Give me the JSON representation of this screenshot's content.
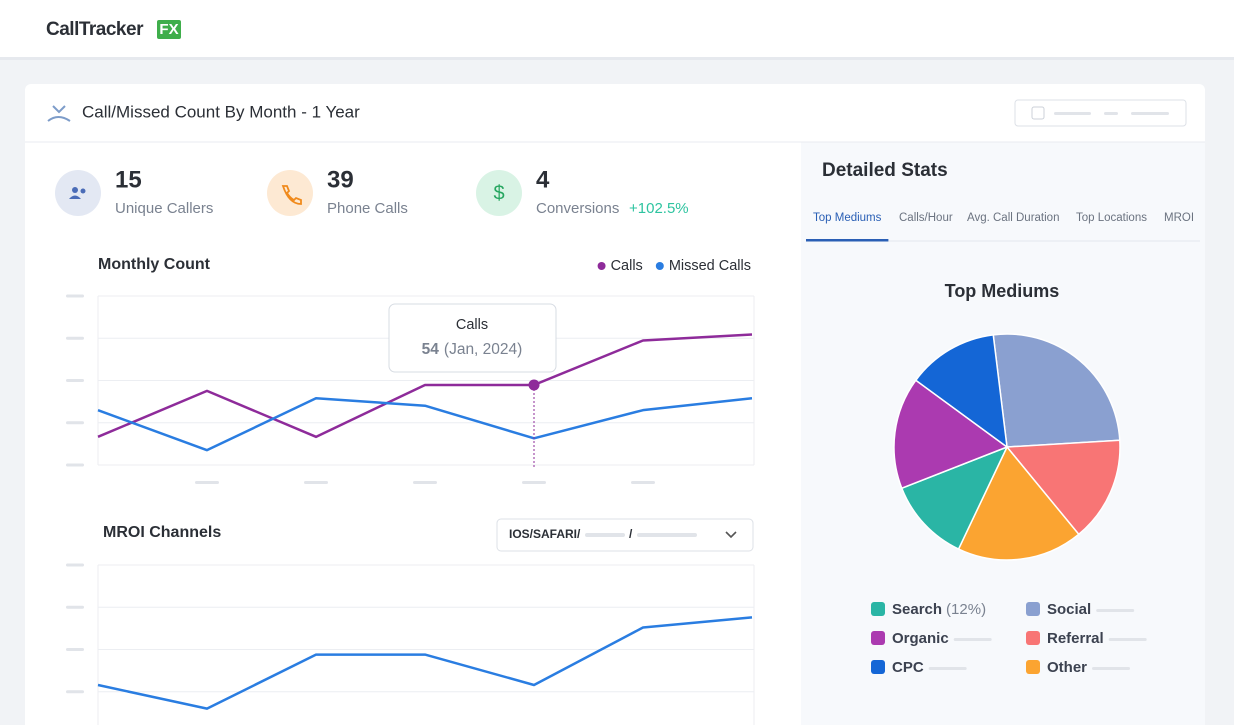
{
  "header": {
    "logo": "CallTracker",
    "logo_badge": "FX"
  },
  "card": {
    "title": "Call/Missed Count By Month - 1 Year",
    "stats": [
      {
        "value": 15,
        "label": "Unique Callers"
      },
      {
        "value": 39,
        "label": "Phone Calls"
      },
      {
        "value": 4,
        "label": "Conversions",
        "change": "+102.5%"
      }
    ]
  },
  "detailed_stats": {
    "title": "Detailed Stats",
    "tabs": [
      "Top Mediums",
      "Calls/Hour",
      "Avg. Call Duration",
      "Top Locations",
      "MROI"
    ],
    "active_tab": 0
  },
  "filter": {
    "parts": [
      "IOS/SAFARI/",
      "/"
    ]
  },
  "chart_data": [
    {
      "type": "line",
      "title": "Monthly Count",
      "categories": [
        null,
        null,
        null,
        null,
        "Jan, 2024",
        null,
        null
      ],
      "series": [
        {
          "name": "Calls",
          "color": "#8e2b9a",
          "values": [
            19,
            50,
            19,
            54,
            54,
            84,
            88
          ]
        },
        {
          "name": "Missed Calls",
          "color": "#2a7de1",
          "values": [
            37,
            10,
            45,
            40,
            18,
            37,
            45
          ]
        }
      ],
      "ylim": [
        0,
        114
      ],
      "tooltip": {
        "title": "Calls",
        "label": "(Jan, 2024)"
      }
    },
    {
      "type": "line",
      "title": "MROI Channels",
      "categories": [
        null,
        null,
        null,
        null,
        null,
        null,
        null
      ],
      "series": [
        {
          "color": "#2a7de1",
          "values": [
            29,
            15,
            47,
            47,
            29,
            63,
            69
          ]
        }
      ],
      "ylim": [
        0,
        100
      ]
    },
    {
      "type": "pie",
      "title": "Top Mediums",
      "categories": [
        "Social",
        "Referral",
        "Other",
        "Search",
        "Organic",
        "CPC"
      ],
      "values": [
        26,
        15,
        18,
        12,
        16,
        13
      ],
      "value_labels": [
        null,
        null,
        null,
        "(12%)",
        null,
        null
      ],
      "colors": [
        "#8aa0d0",
        "#f87575",
        "#fba431",
        "#2ab5a5",
        "#ab3ab0",
        "#1466d6"
      ]
    }
  ]
}
